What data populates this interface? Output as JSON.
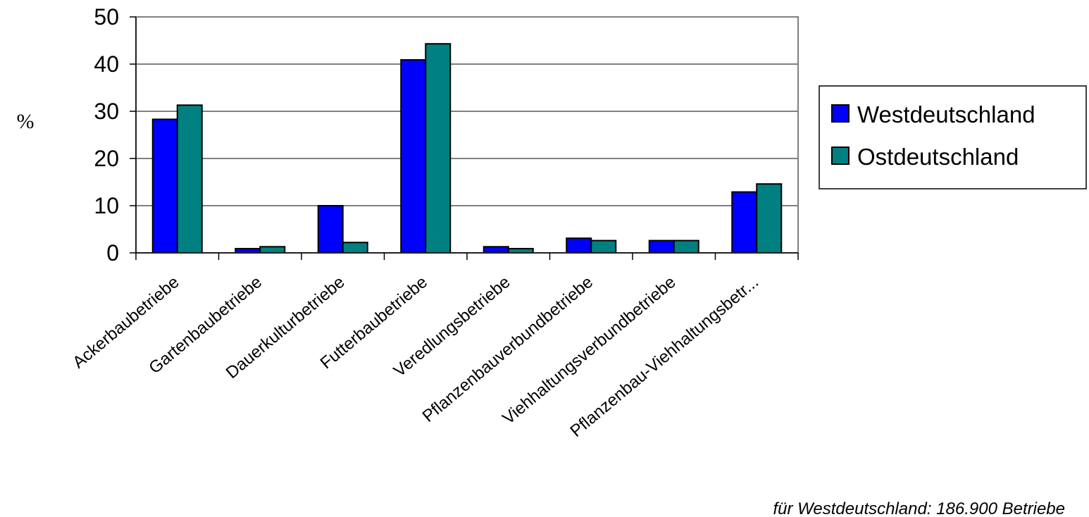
{
  "chart_data": {
    "type": "bar",
    "title": "",
    "xlabel": "",
    "ylabel": "%",
    "ylim": [
      0,
      50
    ],
    "yticks": [
      0,
      10,
      20,
      30,
      40,
      50
    ],
    "grid": true,
    "legend_position": "right",
    "categories": [
      "Ackerbaubetriebe",
      "Gartenbaubetriebe",
      "Dauerkulturbetriebe",
      "Futterbaubetriebe",
      "Veredlungsbetriebe",
      "Pflanzenbauverbundbetriebe",
      "Viehhaltungsverbundbetriebe",
      "Pflanzenbau-Viehhaltungsbetr..."
    ],
    "series": [
      {
        "name": "Westdeutschland",
        "color": "#0000ff",
        "values": [
          28.3,
          0.9,
          10.0,
          40.9,
          1.3,
          3.1,
          2.6,
          12.9
        ]
      },
      {
        "name": "Ostdeutschland",
        "color": "#008080",
        "values": [
          31.3,
          1.3,
          2.2,
          44.3,
          0.9,
          2.6,
          2.6,
          14.6
        ]
      }
    ],
    "annotation": "für Westdeutschland:  186.900 Betriebe"
  }
}
